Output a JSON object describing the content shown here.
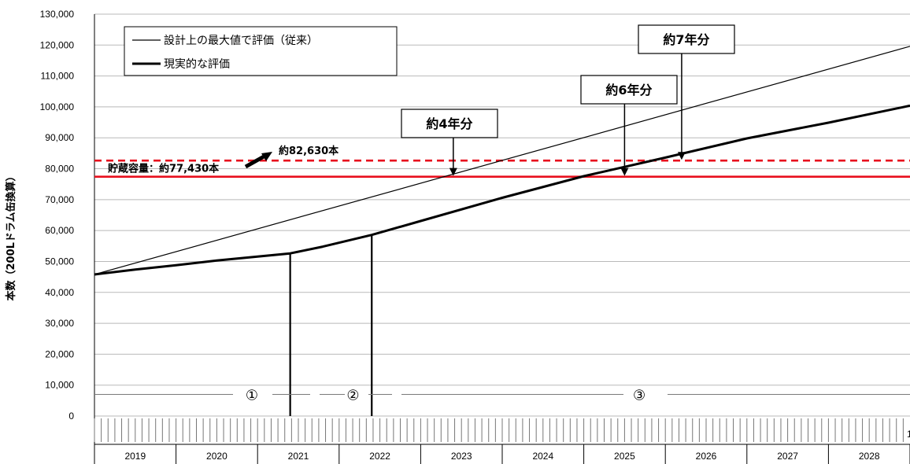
{
  "chart_data": {
    "type": "line",
    "ylabel": "本数（200Lドラム缶換算）",
    "ylim": [
      0,
      130000
    ],
    "yticks": [
      "130,000",
      "120,000",
      "110,000",
      "100,000",
      "90,000",
      "80,000",
      "70,000",
      "60,000",
      "50,000",
      "40,000",
      "30,000",
      "20,000",
      "10,000",
      "0"
    ],
    "year_labels": [
      "2019",
      "2020",
      "2021",
      "2022",
      "2023",
      "2024",
      "2025",
      "2026",
      "2027",
      "2028"
    ],
    "year_range": [
      2019,
      2029
    ],
    "axis_end_label": "1",
    "series": [
      {
        "name": "設計上の最大値で評価（従来）",
        "width": 1.2,
        "x": [
          2019.0,
          2029.0
        ],
        "y": [
          45800,
          119600
        ]
      },
      {
        "name": "現実的な評価",
        "width": 3,
        "x": [
          2019.0,
          2019.5,
          2020.0,
          2020.5,
          2021.0,
          2021.4,
          2021.8,
          2022.4,
          2023.0,
          2024.0,
          2025.0,
          2026.0,
          2027.0,
          2028.0,
          2029.0
        ],
        "y": [
          45800,
          47400,
          48800,
          50300,
          51600,
          52600,
          54800,
          58600,
          63100,
          70600,
          77600,
          83600,
          89800,
          94900,
          100400
        ]
      }
    ],
    "hlines": [
      {
        "y": 82630,
        "color": "#e8101e",
        "dashed": true,
        "label": "約82,630本"
      },
      {
        "y": 77430,
        "color": "#e8101e",
        "dashed": false,
        "label": "貯蔵容量：約77,430本"
      }
    ],
    "callouts": [
      {
        "label": "約4年分",
        "x": 2023.4,
        "y": 77430
      },
      {
        "label": "約6年分",
        "x": 2025.5,
        "y": 77430
      },
      {
        "label": "約7年分",
        "x": 2026.2,
        "y": 82630
      }
    ],
    "phase_dividers": [
      2021.4,
      2022.4
    ],
    "phase_labels": [
      {
        "label": "①",
        "x": 2020.93
      },
      {
        "label": "②",
        "x": 2022.17
      },
      {
        "label": "③",
        "x": 2025.68
      }
    ],
    "phase_label_y": 7000
  }
}
